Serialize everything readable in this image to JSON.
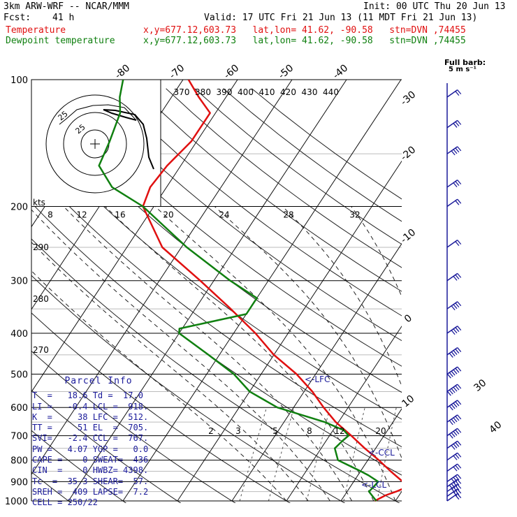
{
  "header": {
    "model": "3km ARW-WRF -- NCAR/MMM",
    "init": "Init: 00 UTC Thu 20 Jun 13",
    "fcst_label": "Fcst:",
    "fcst_value": "41 h",
    "valid": "Valid: 17 UTC Fri 21 Jun 13 (11 MDT Fri 21 Jun 13)",
    "temp_label": "Temperature",
    "dew_label": "Dewpoint temperature",
    "loc_text": "x,y=677.12,603.73   lat,lon= 41.62, -90.58   stn=DVN ,74455",
    "full_barb": "Full barb:",
    "full_barb_unit": "5 m s⁻¹"
  },
  "colors": {
    "temperature": "#e01010",
    "dewpoint": "#108010",
    "parcel": "#1a1a9a",
    "barbs": "#1a1a9a"
  },
  "parcel_info": {
    "title": "Parcel Info",
    "rows": [
      "T  =   18.6 Td =  17.0",
      "LI =   -0.4 LCL =  918.",
      "K  =     38 LFC =  512.",
      "TT =     51 EL  =  705.",
      "SVI=   -2.4 CCL =  767.",
      "PW =   4.07 YGP =   0.0",
      "CAPE =    0 SWEAT=  436",
      "CIN  =    0 HWBZ= 4398.",
      "Tc  =  35.3 SHEAR=  57.",
      "SREH =  409 LAPSE=  7.2",
      "CELL = 250/22"
    ]
  },
  "hodograph": {
    "units_label": "kts",
    "ring_labels": [
      "25",
      "25"
    ]
  },
  "chart_data": {
    "type": "line",
    "title": "",
    "ylabel": "",
    "xlabel": "",
    "y_scale": "log pressure",
    "ylim": [
      1000,
      100
    ],
    "pressure_ticks": [
      "100",
      "200",
      "300",
      "400",
      "500",
      "600",
      "700",
      "800",
      "900",
      "1000"
    ],
    "isotherm_labels": [
      "-80",
      "-70",
      "-60",
      "-50",
      "-40",
      "-30",
      "-20",
      "-10",
      "0",
      "10",
      "30",
      "40"
    ],
    "theta_e_labels": [
      "370",
      "380",
      "390",
      "400",
      "410",
      "420",
      "430",
      "440"
    ],
    "theta_left_labels": [
      "290",
      "280",
      "270"
    ],
    "mixing_ratio_labels_upper": [
      "8",
      "12",
      "16",
      "20",
      "24",
      "28",
      "32"
    ],
    "mixing_ratio_labels_lower": [
      "2",
      "3",
      "5",
      "8",
      "12",
      "20"
    ],
    "annotations": [
      "<-LFC",
      "<-CCL",
      "<-LCL"
    ],
    "series": [
      {
        "name": "Temperature",
        "color": "#e01010",
        "points": [
          [
            1000,
            16.2
          ],
          [
            970,
            17.5
          ],
          [
            950,
            19.0
          ],
          [
            925,
            20.5
          ],
          [
            900,
            19.0
          ],
          [
            850,
            15.5
          ],
          [
            800,
            12.0
          ],
          [
            750,
            8.0
          ],
          [
            700,
            4.0
          ],
          [
            650,
            -0.5
          ],
          [
            600,
            -4.5
          ],
          [
            550,
            -8.5
          ],
          [
            500,
            -13.5
          ],
          [
            450,
            -20.0
          ],
          [
            400,
            -26.0
          ],
          [
            350,
            -33.5
          ],
          [
            300,
            -42.5
          ],
          [
            250,
            -53.5
          ],
          [
            200,
            -62.0
          ],
          [
            180,
            -63.0
          ],
          [
            160,
            -62.5
          ],
          [
            140,
            -61.0
          ],
          [
            120,
            -61.0
          ],
          [
            110,
            -65.0
          ],
          [
            100,
            -69.0
          ]
        ]
      },
      {
        "name": "Dewpoint temperature",
        "color": "#108010",
        "points": [
          [
            1000,
            16.5
          ],
          [
            970,
            15.0
          ],
          [
            950,
            14.0
          ],
          [
            925,
            14.3
          ],
          [
            900,
            14.5
          ],
          [
            870,
            12.0
          ],
          [
            850,
            10.0
          ],
          [
            800,
            4.5
          ],
          [
            750,
            2.5
          ],
          [
            720,
            3.0
          ],
          [
            700,
            3.5
          ],
          [
            680,
            2.0
          ],
          [
            650,
            -2.5
          ],
          [
            600,
            -13.0
          ],
          [
            550,
            -20.0
          ],
          [
            500,
            -25.0
          ],
          [
            450,
            -32.0
          ],
          [
            400,
            -40.0
          ],
          [
            390,
            -40.5
          ],
          [
            360,
            -30.0
          ],
          [
            330,
            -30.0
          ],
          [
            300,
            -37.0
          ],
          [
            250,
            -49.0
          ],
          [
            200,
            -62.0
          ],
          [
            180,
            -70.0
          ],
          [
            160,
            -75.0
          ],
          [
            140,
            -76.0
          ],
          [
            120,
            -77.5
          ],
          [
            110,
            -79.5
          ],
          [
            100,
            -81.0
          ]
        ]
      }
    ],
    "wind_barbs": [
      {
        "p": 1000,
        "speed_ms": 10
      },
      {
        "p": 975,
        "speed_ms": 15
      },
      {
        "p": 950,
        "speed_ms": 20
      },
      {
        "p": 925,
        "speed_ms": 25
      },
      {
        "p": 900,
        "speed_ms": 20
      },
      {
        "p": 850,
        "speed_ms": 15
      },
      {
        "p": 800,
        "speed_ms": 15
      },
      {
        "p": 750,
        "speed_ms": 20
      },
      {
        "p": 700,
        "speed_ms": 25
      },
      {
        "p": 650,
        "speed_ms": 25
      },
      {
        "p": 600,
        "speed_ms": 25
      },
      {
        "p": 550,
        "speed_ms": 30
      },
      {
        "p": 500,
        "speed_ms": 30
      },
      {
        "p": 450,
        "speed_ms": 25
      },
      {
        "p": 400,
        "speed_ms": 20
      },
      {
        "p": 350,
        "speed_ms": 20
      },
      {
        "p": 300,
        "speed_ms": 15
      },
      {
        "p": 250,
        "speed_ms": 10
      },
      {
        "p": 200,
        "speed_ms": 10
      },
      {
        "p": 180,
        "speed_ms": 15
      },
      {
        "p": 150,
        "speed_ms": 20
      },
      {
        "p": 130,
        "speed_ms": 15
      },
      {
        "p": 110,
        "speed_ms": 10
      }
    ]
  }
}
